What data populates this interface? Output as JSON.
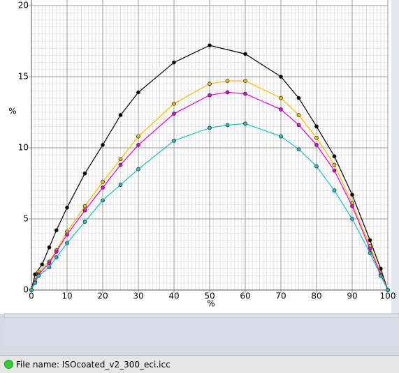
{
  "chart_data": {
    "type": "line",
    "y_label": "%",
    "x_label": "%",
    "xlim": [
      0,
      100
    ],
    "ylim": [
      0,
      20
    ],
    "xticks": [
      0,
      10,
      20,
      30,
      40,
      50,
      60,
      70,
      80,
      90,
      100
    ],
    "yticks": [
      0,
      5,
      10,
      15,
      20
    ],
    "grid": true,
    "series": [
      {
        "color": "#000000",
        "x": [
          0,
          1,
          3,
          5,
          7,
          10,
          15,
          20,
          25,
          30,
          40,
          50,
          60,
          70,
          75,
          80,
          85,
          90,
          95,
          98,
          100
        ],
        "values": [
          0,
          1.1,
          1.8,
          3.0,
          4.2,
          5.8,
          8.2,
          10.2,
          12.3,
          13.9,
          16.0,
          17.2,
          16.6,
          15.0,
          13.5,
          11.5,
          9.4,
          6.7,
          3.5,
          1.5,
          0
        ]
      },
      {
        "color": "#f0c000",
        "x": [
          0,
          1,
          2,
          5,
          7,
          10,
          15,
          20,
          25,
          30,
          40,
          50,
          55,
          60,
          70,
          75,
          80,
          85,
          90,
          95,
          98,
          100
        ],
        "values": [
          0,
          0.7,
          1.3,
          2.0,
          2.8,
          4.1,
          5.9,
          7.6,
          9.2,
          10.8,
          13.1,
          14.5,
          14.7,
          14.7,
          13.5,
          12.3,
          10.7,
          8.8,
          6.1,
          3.1,
          1.2,
          0
        ]
      },
      {
        "color": "#e000e0",
        "x": [
          0,
          1,
          2,
          5,
          7,
          10,
          15,
          20,
          25,
          30,
          40,
          50,
          55,
          60,
          70,
          75,
          80,
          85,
          90,
          95,
          98,
          100
        ],
        "values": [
          0,
          0.6,
          1.1,
          1.9,
          2.7,
          3.9,
          5.6,
          7.2,
          8.8,
          10.2,
          12.4,
          13.7,
          13.9,
          13.8,
          12.7,
          11.6,
          10.2,
          8.4,
          5.9,
          2.9,
          1.1,
          0
        ]
      },
      {
        "color": "#20c0c0",
        "x": [
          0,
          1,
          2,
          5,
          7,
          10,
          15,
          20,
          25,
          30,
          40,
          50,
          55,
          60,
          70,
          75,
          80,
          85,
          90,
          95,
          98,
          100
        ],
        "values": [
          0,
          0.5,
          1.0,
          1.6,
          2.3,
          3.3,
          4.8,
          6.3,
          7.4,
          8.5,
          10.5,
          11.4,
          11.6,
          11.7,
          10.8,
          9.9,
          8.7,
          7.0,
          5.0,
          2.6,
          1.0,
          0
        ]
      }
    ]
  },
  "status_bar": {
    "file_name": "File name: ISOcoated_v2_300_eci.icc"
  }
}
